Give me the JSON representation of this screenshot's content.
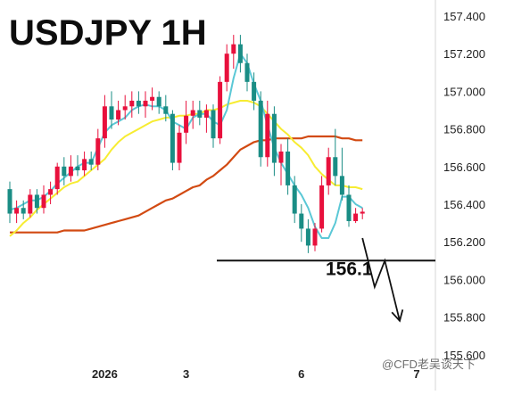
{
  "chart_data": {
    "type": "candlestick",
    "title": "USDJPY 1H",
    "y_ticks": [
      "157.400",
      "157.200",
      "157.000",
      "156.800",
      "156.600",
      "156.400",
      "156.200",
      "156.000",
      "155.800",
      "155.600"
    ],
    "ylim": [
      155.6,
      157.45
    ],
    "x_labels": [
      {
        "label": "2026",
        "index": 14
      },
      {
        "label": "3",
        "index": 26
      },
      {
        "label": "6",
        "index": 43
      },
      {
        "label": "7",
        "index": 60
      }
    ],
    "level": {
      "value": 156.1,
      "label": "156.1"
    },
    "projection": [
      {
        "i": 52,
        "y": 156.22
      },
      {
        "i": 53.8,
        "y": 155.96
      },
      {
        "i": 55.3,
        "y": 156.1
      },
      {
        "i": 57.5,
        "y": 155.78
      }
    ],
    "colors": {
      "up": "#e8103c",
      "down": "#1a8d85",
      "fast_ma": "#5bc8d6",
      "mid_ma": "#f7ec32",
      "slow_ma": "#d24a12"
    },
    "series": [
      {
        "name": "",
        "role": "fast_ma",
        "values": [
          156.37,
          156.38,
          156.4,
          156.42,
          156.42,
          156.44,
          156.47,
          156.51,
          156.54,
          156.57,
          156.6,
          156.62,
          156.62,
          156.7,
          156.78,
          156.82,
          156.84,
          156.86,
          156.9,
          156.92,
          156.93,
          156.92,
          156.92,
          156.9,
          156.84,
          156.82,
          156.8,
          156.86,
          156.88,
          156.88,
          156.84,
          156.82,
          156.9,
          157.07,
          157.2,
          157.15,
          157.04,
          156.95,
          156.82,
          156.7,
          156.62,
          156.56,
          156.5,
          156.45,
          156.38,
          156.28,
          156.22,
          156.22,
          156.3,
          156.44,
          156.44,
          156.4,
          156.38
        ]
      },
      {
        "name": "",
        "role": "mid_ma",
        "values": [
          156.23,
          156.26,
          156.3,
          156.33,
          156.37,
          156.4,
          156.43,
          156.46,
          156.49,
          156.51,
          156.52,
          156.55,
          156.58,
          156.61,
          156.64,
          156.69,
          156.73,
          156.76,
          156.78,
          156.8,
          156.82,
          156.84,
          156.85,
          156.86,
          156.86,
          156.87,
          156.87,
          156.88,
          156.88,
          156.9,
          156.9,
          156.91,
          156.93,
          156.94,
          156.95,
          156.95,
          156.94,
          156.92,
          156.88,
          156.84,
          156.8,
          156.77,
          156.73,
          156.7,
          156.66,
          156.6,
          156.56,
          156.53,
          156.5,
          156.5,
          156.49,
          156.49,
          156.48
        ]
      },
      {
        "name": "",
        "role": "slow_ma",
        "values": [
          156.25,
          156.25,
          156.25,
          156.25,
          156.25,
          156.25,
          156.25,
          156.25,
          156.26,
          156.26,
          156.26,
          156.26,
          156.27,
          156.28,
          156.29,
          156.3,
          156.31,
          156.32,
          156.33,
          156.34,
          156.36,
          156.38,
          156.4,
          156.42,
          156.43,
          156.45,
          156.47,
          156.49,
          156.5,
          156.53,
          156.55,
          156.58,
          156.61,
          156.65,
          156.69,
          156.71,
          156.73,
          156.74,
          156.74,
          156.75,
          156.75,
          156.75,
          156.75,
          156.75,
          156.76,
          156.76,
          156.76,
          156.76,
          156.76,
          156.75,
          156.75,
          156.74,
          156.74
        ]
      }
    ],
    "candles": [
      [
        156.48,
        156.52,
        156.3,
        156.35
      ],
      [
        156.35,
        156.42,
        156.3,
        156.38
      ],
      [
        156.38,
        156.42,
        156.32,
        156.35
      ],
      [
        156.35,
        156.48,
        156.33,
        156.45
      ],
      [
        156.45,
        156.48,
        156.35,
        156.38
      ],
      [
        156.38,
        156.5,
        156.35,
        156.45
      ],
      [
        156.45,
        156.52,
        156.4,
        156.48
      ],
      [
        156.48,
        156.62,
        156.45,
        156.6
      ],
      [
        156.6,
        156.65,
        156.5,
        156.55
      ],
      [
        156.55,
        156.66,
        156.52,
        156.6
      ],
      [
        156.6,
        156.66,
        156.55,
        156.58
      ],
      [
        156.58,
        156.68,
        156.55,
        156.64
      ],
      [
        156.64,
        156.68,
        156.58,
        156.61
      ],
      [
        156.61,
        156.8,
        156.58,
        156.75
      ],
      [
        156.75,
        156.98,
        156.7,
        156.92
      ],
      [
        156.92,
        157.0,
        156.8,
        156.85
      ],
      [
        156.85,
        156.95,
        156.82,
        156.9
      ],
      [
        156.9,
        156.98,
        156.85,
        156.92
      ],
      [
        156.92,
        157.0,
        156.86,
        156.95
      ],
      [
        156.95,
        157.0,
        156.88,
        156.92
      ],
      [
        156.92,
        157.0,
        156.86,
        156.95
      ],
      [
        156.95,
        157.02,
        156.9,
        156.97
      ],
      [
        156.97,
        157.0,
        156.88,
        156.92
      ],
      [
        156.92,
        156.98,
        156.84,
        156.88
      ],
      [
        156.88,
        156.9,
        156.58,
        156.62
      ],
      [
        156.62,
        156.82,
        156.58,
        156.78
      ],
      [
        156.78,
        156.95,
        156.72,
        156.87
      ],
      [
        156.87,
        156.95,
        156.8,
        156.9
      ],
      [
        156.9,
        156.95,
        156.82,
        156.86
      ],
      [
        156.86,
        156.93,
        156.78,
        156.9
      ],
      [
        156.9,
        156.93,
        156.7,
        156.75
      ],
      [
        156.75,
        157.08,
        156.72,
        157.05
      ],
      [
        157.05,
        157.25,
        157.0,
        157.2
      ],
      [
        157.2,
        157.3,
        157.12,
        157.25
      ],
      [
        157.25,
        157.3,
        157.1,
        157.15
      ],
      [
        157.15,
        157.2,
        157.0,
        157.05
      ],
      [
        157.05,
        157.1,
        156.9,
        156.95
      ],
      [
        156.95,
        157.0,
        156.6,
        156.65
      ],
      [
        156.65,
        156.95,
        156.6,
        156.88
      ],
      [
        156.88,
        156.92,
        156.55,
        156.62
      ],
      [
        156.62,
        156.72,
        156.5,
        156.68
      ],
      [
        156.68,
        156.75,
        156.45,
        156.5
      ],
      [
        156.5,
        156.55,
        156.3,
        156.35
      ],
      [
        156.35,
        156.4,
        156.2,
        156.27
      ],
      [
        156.27,
        156.32,
        156.14,
        156.18
      ],
      [
        156.18,
        156.3,
        156.15,
        156.27
      ],
      [
        156.27,
        156.55,
        156.25,
        156.5
      ],
      [
        156.5,
        156.7,
        156.45,
        156.65
      ],
      [
        156.65,
        156.8,
        156.5,
        156.55
      ],
      [
        156.55,
        156.7,
        156.42,
        156.45
      ],
      [
        156.45,
        156.5,
        156.28,
        156.31
      ],
      [
        156.31,
        156.38,
        156.3,
        156.35
      ],
      [
        156.35,
        156.38,
        156.32,
        156.36
      ]
    ]
  },
  "watermark": "@CFD老吴谈天下"
}
